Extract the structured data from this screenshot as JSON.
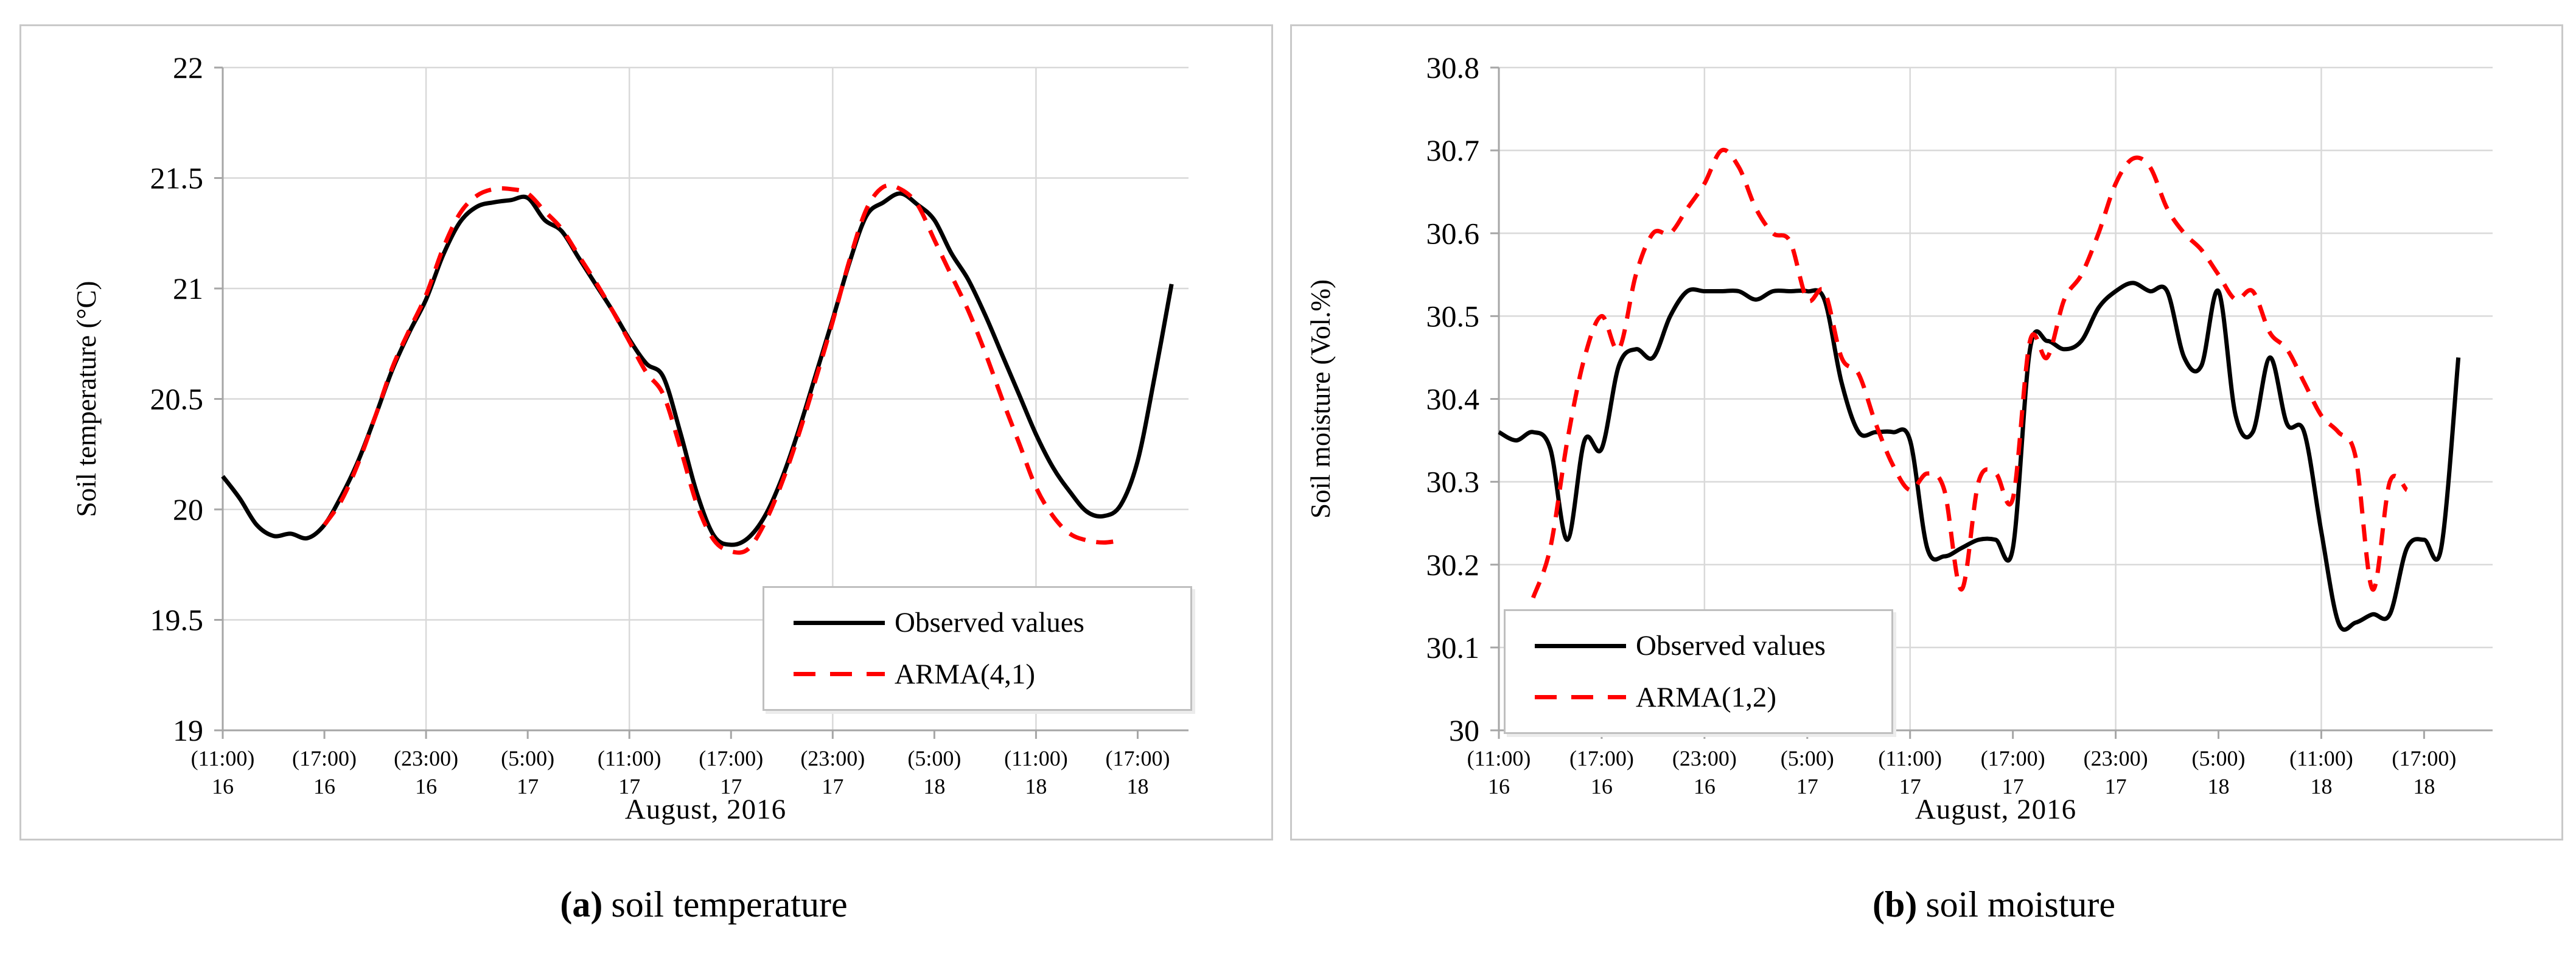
{
  "figure": {
    "panels": [
      {
        "id": "temperature",
        "ylabel": "Soil temperature (°C)",
        "xlabel": "August, 2016",
        "caption": {
          "label": "(a)",
          "text": "soil temperature"
        },
        "legend_entries": [
          "Observed values",
          "ARMA(4,1)"
        ]
      },
      {
        "id": "moisture",
        "ylabel": "Soil moisture (Vol.%)",
        "xlabel": "August, 2016",
        "caption": {
          "label": "(b)",
          "text": "soil moisture"
        },
        "legend_entries": [
          "Observed values",
          "ARMA(1,2)"
        ]
      }
    ],
    "colors": {
      "observed_line": "#000000",
      "model_line": "#ff0000",
      "gridline": "#d9d9d9",
      "axis_line": "#a6a6a6",
      "panel_border": "#c9c9c9",
      "text": "#000000",
      "background": "#ffffff"
    }
  },
  "chart_data": [
    {
      "type": "line",
      "title": "(a) soil temperature",
      "xlabel": "August, 2016",
      "ylabel": "Soil temperature (°C)",
      "ylim": [
        19,
        22
      ],
      "ytick_labels": [
        "22",
        "21.5",
        "21",
        "20.5",
        "20",
        "19.5",
        "19"
      ],
      "x_unit": "hours since 11:00 August 16, 2016 (hourly samples)",
      "x_hours_total": 57,
      "x_ticks": [
        {
          "hour": 0,
          "time": "(11:00)",
          "day": "16"
        },
        {
          "hour": 6,
          "time": "(17:00)",
          "day": "16"
        },
        {
          "hour": 12,
          "time": "(23:00)",
          "day": "16"
        },
        {
          "hour": 18,
          "time": "(5:00)",
          "day": "17"
        },
        {
          "hour": 24,
          "time": "(11:00)",
          "day": "17"
        },
        {
          "hour": 30,
          "time": "(17:00)",
          "day": "17"
        },
        {
          "hour": 36,
          "time": "(23:00)",
          "day": "17"
        },
        {
          "hour": 42,
          "time": "(5:00)",
          "day": "18"
        },
        {
          "hour": 48,
          "time": "(11:00)",
          "day": "18"
        },
        {
          "hour": 54,
          "time": "(17:00)",
          "day": "18"
        }
      ],
      "grid_hours": [
        12,
        24,
        36,
        48
      ],
      "legend_position": "inside lower right",
      "series": [
        {
          "name": "Observed values",
          "color": "#000000",
          "dash": false,
          "start_hour": 0,
          "step_hours": 1,
          "values": [
            20.15,
            20.05,
            19.93,
            19.88,
            19.89,
            19.87,
            19.93,
            20.06,
            20.22,
            20.42,
            20.63,
            20.8,
            20.95,
            21.15,
            21.3,
            21.37,
            21.39,
            21.4,
            21.41,
            21.31,
            21.26,
            21.14,
            21.02,
            20.9,
            20.77,
            20.66,
            20.6,
            20.35,
            20.07,
            19.88,
            19.84,
            19.87,
            19.97,
            20.14,
            20.36,
            20.61,
            20.86,
            21.12,
            21.33,
            21.39,
            21.43,
            21.38,
            21.31,
            21.16,
            21.04,
            20.88,
            20.7,
            20.52,
            20.34,
            20.19,
            20.08,
            19.99,
            19.97,
            20.02,
            20.22,
            20.6,
            21.02
          ]
        },
        {
          "name": "ARMA(4,1)",
          "color": "#ff0000",
          "dash": true,
          "start_hour": 6,
          "step_hours": 1,
          "values": [
            19.93,
            20.04,
            20.21,
            20.42,
            20.64,
            20.81,
            20.97,
            21.18,
            21.34,
            21.42,
            21.45,
            21.45,
            21.43,
            21.35,
            21.27,
            21.15,
            21.03,
            20.9,
            20.76,
            20.62,
            20.52,
            20.28,
            20.02,
            19.86,
            19.81,
            19.82,
            19.94,
            20.12,
            20.34,
            20.59,
            20.85,
            21.13,
            21.36,
            21.46,
            21.45,
            21.38,
            21.22,
            21.06,
            20.9,
            20.71,
            20.5,
            20.3,
            20.1,
            19.97,
            19.89,
            19.86,
            19.85,
            19.86
          ]
        }
      ]
    },
    {
      "type": "line",
      "title": "(b) soil moisture",
      "xlabel": "August, 2016",
      "ylabel": "Soil moisture (Vol.%)",
      "ylim": [
        30,
        30.8
      ],
      "ytick_labels": [
        "30.8",
        "30.7",
        "30.6",
        "30.5",
        "30.4",
        "30.3",
        "30.2",
        "30.1",
        "30"
      ],
      "x_unit": "hours since 11:00 August 16, 2016 (hourly samples)",
      "x_hours_total": 58,
      "x_ticks": [
        {
          "hour": 0,
          "time": "(11:00)",
          "day": "16"
        },
        {
          "hour": 6,
          "time": "(17:00)",
          "day": "16"
        },
        {
          "hour": 12,
          "time": "(23:00)",
          "day": "16"
        },
        {
          "hour": 18,
          "time": "(5:00)",
          "day": "17"
        },
        {
          "hour": 24,
          "time": "(11:00)",
          "day": "17"
        },
        {
          "hour": 30,
          "time": "(17:00)",
          "day": "17"
        },
        {
          "hour": 36,
          "time": "(23:00)",
          "day": "17"
        },
        {
          "hour": 42,
          "time": "(5:00)",
          "day": "18"
        },
        {
          "hour": 48,
          "time": "(11:00)",
          "day": "18"
        },
        {
          "hour": 54,
          "time": "(17:00)",
          "day": "18"
        }
      ],
      "grid_hours": [
        12,
        24,
        36,
        48
      ],
      "legend_position": "inside lower left",
      "series": [
        {
          "name": "Observed values",
          "color": "#000000",
          "dash": false,
          "start_hour": 0,
          "step_hours": 1,
          "values": [
            30.36,
            30.35,
            30.36,
            30.34,
            30.23,
            30.35,
            30.34,
            30.44,
            30.46,
            30.45,
            30.5,
            30.53,
            30.53,
            30.53,
            30.53,
            30.52,
            30.53,
            30.53,
            30.53,
            30.52,
            30.42,
            30.36,
            30.36,
            30.36,
            30.35,
            30.22,
            30.21,
            30.22,
            30.23,
            30.23,
            30.22,
            30.46,
            30.47,
            30.46,
            30.47,
            30.51,
            30.53,
            30.54,
            30.53,
            30.53,
            30.45,
            30.44,
            30.53,
            30.38,
            30.36,
            30.45,
            30.37,
            30.36,
            30.24,
            30.13,
            30.13,
            30.14,
            30.14,
            30.22,
            30.23,
            30.22,
            30.45
          ]
        },
        {
          "name": "ARMA(1,2)",
          "color": "#ff0000",
          "dash": true,
          "start_hour": 2,
          "step_hours": 1,
          "values": [
            30.16,
            30.22,
            30.35,
            30.45,
            30.5,
            30.46,
            30.55,
            30.6,
            30.6,
            30.63,
            30.66,
            30.7,
            30.68,
            30.63,
            30.6,
            30.59,
            30.52,
            30.53,
            30.45,
            30.43,
            30.37,
            30.32,
            30.29,
            30.31,
            30.29,
            30.17,
            30.3,
            30.31,
            30.28,
            30.47,
            30.45,
            30.52,
            30.55,
            30.6,
            30.66,
            30.69,
            30.68,
            30.63,
            30.6,
            30.58,
            30.55,
            30.52,
            30.53,
            30.48,
            30.46,
            30.42,
            30.38,
            30.36,
            30.33,
            30.17,
            30.3,
            30.29
          ]
        }
      ]
    }
  ]
}
